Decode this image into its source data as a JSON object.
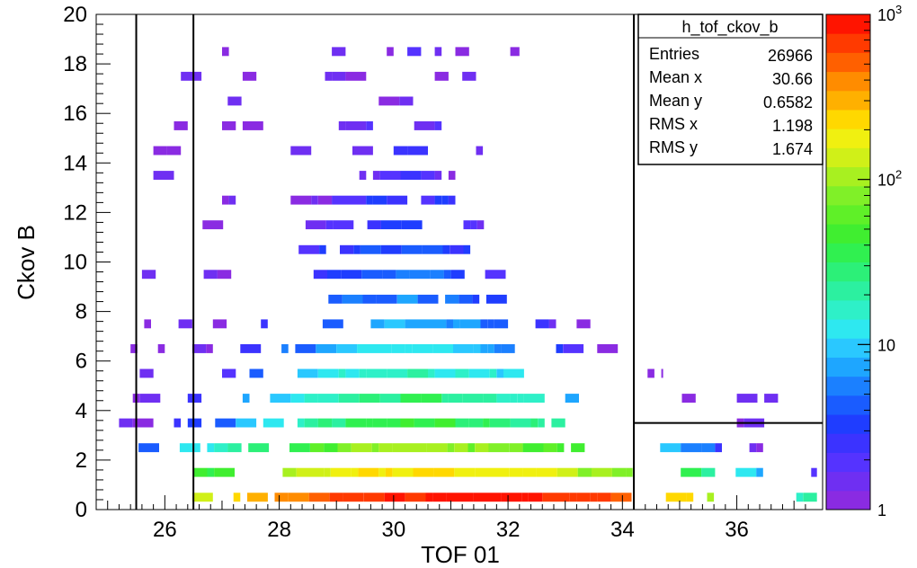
{
  "chart_data": {
    "type": "heatmap",
    "title": "",
    "xlabel": "TOF 01",
    "ylabel": "Ckov B",
    "xlim": [
      24.8,
      37.5
    ],
    "ylim": [
      0,
      20
    ],
    "x_ticks": [
      {
        "v": 26,
        "label": "26"
      },
      {
        "v": 28,
        "label": "28"
      },
      {
        "v": 30,
        "label": "30"
      },
      {
        "v": 32,
        "label": "32"
      },
      {
        "v": 34,
        "label": "34"
      },
      {
        "v": 36,
        "label": "36"
      }
    ],
    "y_ticks": [
      {
        "v": 0,
        "label": "0"
      },
      {
        "v": 2,
        "label": "2"
      },
      {
        "v": 4,
        "label": "4"
      },
      {
        "v": 6,
        "label": "6"
      },
      {
        "v": 8,
        "label": "8"
      },
      {
        "v": 10,
        "label": "10"
      },
      {
        "v": 12,
        "label": "12"
      },
      {
        "v": 14,
        "label": "14"
      },
      {
        "v": 16,
        "label": "16"
      },
      {
        "v": 18,
        "label": "18"
      },
      {
        "v": 20,
        "label": "20"
      }
    ],
    "colorbar": {
      "scale": "log",
      "range": [
        1,
        1000
      ],
      "ticks": [
        {
          "v": 1,
          "label": "1"
        },
        {
          "v": 10,
          "label": "10"
        },
        {
          "v": 100,
          "label": "10",
          "exp": "2"
        },
        {
          "v": 1000,
          "label": "10",
          "exp": "3"
        }
      ],
      "colors": [
        "#8a2be2",
        "#6f2ff2",
        "#5533ff",
        "#3b33ff",
        "#1f3dff",
        "#1a5cff",
        "#1b80ff",
        "#1ea6ff",
        "#2ac8ff",
        "#2ee8f0",
        "#2ef0c8",
        "#2cf0a0",
        "#2cf078",
        "#30f050",
        "#40ee30",
        "#5ff028",
        "#80f028",
        "#a8f020",
        "#d0f018",
        "#f0f010",
        "#ffd800",
        "#ffb000",
        "#ff8c00",
        "#ff6000",
        "#ff3a00",
        "#ff1400"
      ]
    },
    "stats_box": {
      "title": "h_tof_ckov_b",
      "rows": [
        {
          "label": "Entries",
          "value": "26966"
        },
        {
          "label": "Mean x",
          "value": "30.66"
        },
        {
          "label": "Mean y",
          "value": "0.6582"
        },
        {
          "label": "RMS x",
          "value": "1.198"
        },
        {
          "label": "RMS y",
          "value": "1.674"
        }
      ]
    },
    "cut_lines": {
      "vertical": [
        25.5,
        26.5,
        34.2
      ],
      "horizontal": [
        {
          "y": 3.5,
          "x_from": 34.2,
          "x_to": 37.5
        }
      ]
    },
    "bins": {
      "y_centers": [
        0.5,
        1.5,
        2.5,
        3.5,
        4.5,
        5.5,
        6.5,
        7.5,
        8.5,
        9.5,
        10.5,
        11.5,
        12.5,
        13.5,
        14.5,
        15.5,
        16.5,
        17.5,
        18.5
      ],
      "y_height": 0.36,
      "x_width": 0.12
    },
    "rows": [
      {
        "y": 0.5,
        "x_from": 25.4,
        "x_to": 37.4,
        "peak": 31.0,
        "peak_count": 1000,
        "spread": 2.2,
        "fill": 1.0
      },
      {
        "y": 1.5,
        "x_from": 25.3,
        "x_to": 37.4,
        "peak": 30.6,
        "peak_count": 220,
        "spread": 2.2,
        "fill": 0.93
      },
      {
        "y": 2.5,
        "x_from": 25.3,
        "x_to": 36.9,
        "peak": 30.5,
        "peak_count": 90,
        "spread": 2.0,
        "fill": 0.8
      },
      {
        "y": 3.5,
        "x_from": 25.2,
        "x_to": 36.5,
        "peak": 30.4,
        "peak_count": 40,
        "spread": 1.8,
        "fill": 0.75
      },
      {
        "y": 4.5,
        "x_from": 25.2,
        "x_to": 37.4,
        "peak": 30.3,
        "peak_count": 28,
        "spread": 1.7,
        "fill": 0.68
      },
      {
        "y": 5.5,
        "x_from": 25.2,
        "x_to": 34.7,
        "peak": 30.2,
        "peak_count": 18,
        "spread": 1.6,
        "fill": 0.62
      },
      {
        "y": 6.5,
        "x_from": 25.4,
        "x_to": 34.8,
        "peak": 30.1,
        "peak_count": 12,
        "spread": 1.6,
        "fill": 0.58
      },
      {
        "y": 7.5,
        "x_from": 25.4,
        "x_to": 34.0,
        "peak": 30.0,
        "peak_count": 8,
        "spread": 1.6,
        "fill": 0.52
      },
      {
        "y": 8.5,
        "x_from": 25.5,
        "x_to": 32.3,
        "peak": 30.0,
        "peak_count": 6,
        "spread": 1.5,
        "fill": 0.48
      },
      {
        "y": 9.5,
        "x_from": 25.6,
        "x_to": 32.0,
        "peak": 30.0,
        "peak_count": 5,
        "spread": 1.4,
        "fill": 0.45
      },
      {
        "y": 10.5,
        "x_from": 25.7,
        "x_to": 32.4,
        "peak": 30.0,
        "peak_count": 4,
        "spread": 1.4,
        "fill": 0.42
      },
      {
        "y": 11.5,
        "x_from": 25.7,
        "x_to": 32.1,
        "peak": 30.0,
        "peak_count": 3,
        "spread": 1.3,
        "fill": 0.4
      },
      {
        "y": 12.5,
        "x_from": 25.8,
        "x_to": 32.0,
        "peak": 30.0,
        "peak_count": 3,
        "spread": 1.2,
        "fill": 0.36
      },
      {
        "y": 13.5,
        "x_from": 25.8,
        "x_to": 32.2,
        "peak": 30.0,
        "peak_count": 2,
        "spread": 1.2,
        "fill": 0.34
      },
      {
        "y": 14.5,
        "x_from": 25.8,
        "x_to": 31.8,
        "peak": 30.0,
        "peak_count": 2,
        "spread": 1.2,
        "fill": 0.3
      },
      {
        "y": 15.5,
        "x_from": 25.8,
        "x_to": 31.6,
        "peak": 30.0,
        "peak_count": 2,
        "spread": 1.1,
        "fill": 0.28
      },
      {
        "y": 16.5,
        "x_from": 25.9,
        "x_to": 30.6,
        "peak": 29.5,
        "peak_count": 1.5,
        "spread": 1.0,
        "fill": 0.25
      },
      {
        "y": 17.5,
        "x_from": 25.8,
        "x_to": 31.6,
        "peak": 30.0,
        "peak_count": 1.5,
        "spread": 1.1,
        "fill": 0.27
      },
      {
        "y": 18.5,
        "x_from": 25.8,
        "x_to": 32.2,
        "peak": 30.0,
        "peak_count": 1.5,
        "spread": 1.1,
        "fill": 0.25
      }
    ]
  }
}
